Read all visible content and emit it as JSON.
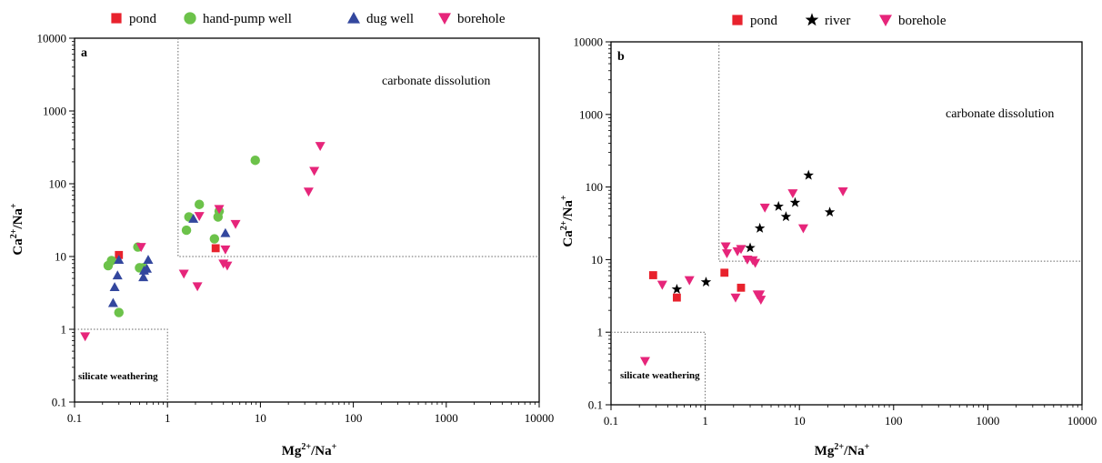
{
  "colors": {
    "pond": "#e8222d",
    "hand_pump_well": "#6cc24a",
    "dug_well": "#33479e",
    "borehole": "#e6257a",
    "river": "#000000"
  },
  "chart_data": [
    {
      "type": "scatter",
      "panel_label": "a",
      "xscale": "log",
      "yscale": "log",
      "xlim": [
        0.1,
        10000
      ],
      "ylim": [
        0.1,
        10000
      ],
      "xticks": [
        "0.1",
        "1",
        "10",
        "100",
        "1000",
        "10000"
      ],
      "yticks": [
        "0.1",
        "1",
        "10",
        "100",
        "1000",
        "10000"
      ],
      "xlabel_base": "Mg",
      "xlabel_sup": "2+",
      "xlabel_mid": "/Na",
      "xlabel_sup2": "+",
      "ylabel_base": "Ca",
      "ylabel_sup": "2+",
      "ylabel_mid": "/Na",
      "ylabel_sup2": "+",
      "annotations": {
        "carbonate": "carbonate dissolution",
        "silicate": "silicate weathering"
      },
      "legend_position": "top",
      "series": [
        {
          "name": "pond",
          "marker": "square",
          "color_key": "pond",
          "points": [
            [
              0.3,
              10.5
            ],
            [
              3.3,
              13
            ]
          ]
        },
        {
          "name": "hand-pump well",
          "marker": "circle",
          "color_key": "hand_pump_well",
          "points": [
            [
              0.23,
              7.5
            ],
            [
              0.25,
              8.8
            ],
            [
              0.3,
              1.7
            ],
            [
              0.48,
              13.5
            ],
            [
              0.5,
              7
            ],
            [
              0.55,
              7
            ],
            [
              1.6,
              23
            ],
            [
              1.7,
              35
            ],
            [
              2.2,
              52
            ],
            [
              3.2,
              17.5
            ],
            [
              3.5,
              35
            ],
            [
              3.6,
              42
            ],
            [
              8.8,
              210
            ]
          ]
        },
        {
          "name": "dug well",
          "marker": "triangle-up",
          "color_key": "dug_well",
          "points": [
            [
              0.26,
              2.3
            ],
            [
              0.27,
              3.8
            ],
            [
              0.29,
              5.5
            ],
            [
              0.3,
              9
            ],
            [
              0.55,
              5.2
            ],
            [
              0.56,
              6.4
            ],
            [
              0.6,
              6.8
            ],
            [
              0.62,
              9
            ],
            [
              1.9,
              33
            ],
            [
              4.2,
              21
            ]
          ]
        },
        {
          "name": "borehole",
          "marker": "triangle-down",
          "color_key": "borehole",
          "points": [
            [
              0.13,
              0.8
            ],
            [
              0.52,
              13.5
            ],
            [
              1.5,
              5.8
            ],
            [
              2.1,
              3.9
            ],
            [
              2.2,
              36
            ],
            [
              3.6,
              45
            ],
            [
              4.0,
              8
            ],
            [
              4.2,
              12.5
            ],
            [
              4.4,
              7.5
            ],
            [
              5.4,
              28
            ],
            [
              33,
              78
            ],
            [
              38,
              150
            ],
            [
              44,
              330
            ]
          ]
        }
      ]
    },
    {
      "type": "scatter",
      "panel_label": "b",
      "xscale": "log",
      "yscale": "log",
      "xlim": [
        0.1,
        10000
      ],
      "ylim": [
        0.1,
        10000
      ],
      "xticks": [
        "0.1",
        "1",
        "10",
        "100",
        "1000",
        "10000"
      ],
      "yticks": [
        "0.1",
        "1",
        "10",
        "100",
        "1000",
        "10000"
      ],
      "xlabel_base": "Mg",
      "xlabel_sup": "2+",
      "xlabel_mid": "/Na",
      "xlabel_sup2": "+",
      "ylabel_base": "Ca",
      "ylabel_sup": "2+",
      "ylabel_mid": "/Na",
      "ylabel_sup2": "+",
      "annotations": {
        "carbonate": "carbonate dissolution",
        "silicate": "silicate weathering"
      },
      "legend_position": "top",
      "series": [
        {
          "name": "pond",
          "marker": "square",
          "color_key": "pond",
          "points": [
            [
              0.28,
              6.1
            ],
            [
              0.5,
              3.0
            ],
            [
              1.6,
              6.6
            ],
            [
              2.4,
              4.1
            ]
          ]
        },
        {
          "name": "river",
          "marker": "star",
          "color_key": "river",
          "points": [
            [
              0.5,
              3.9
            ],
            [
              1.02,
              4.9
            ],
            [
              3.0,
              14.5
            ],
            [
              3.8,
              27
            ],
            [
              6.0,
              54
            ],
            [
              7.2,
              39
            ],
            [
              9.0,
              61
            ],
            [
              12.5,
              145
            ],
            [
              21,
              45
            ]
          ]
        },
        {
          "name": "borehole",
          "marker": "triangle-down",
          "color_key": "borehole",
          "points": [
            [
              0.23,
              0.4
            ],
            [
              0.35,
              4.5
            ],
            [
              0.68,
              5.2
            ],
            [
              1.65,
              15.2
            ],
            [
              1.7,
              12.2
            ],
            [
              2.1,
              3.0
            ],
            [
              2.2,
              13
            ],
            [
              2.4,
              14
            ],
            [
              2.8,
              10
            ],
            [
              3.2,
              9.8
            ],
            [
              3.4,
              9
            ],
            [
              3.6,
              3.3
            ],
            [
              3.8,
              3.3
            ],
            [
              3.9,
              2.8
            ],
            [
              4.3,
              52
            ],
            [
              8.5,
              82
            ],
            [
              11,
              27
            ],
            [
              29,
              87
            ]
          ]
        }
      ]
    }
  ]
}
